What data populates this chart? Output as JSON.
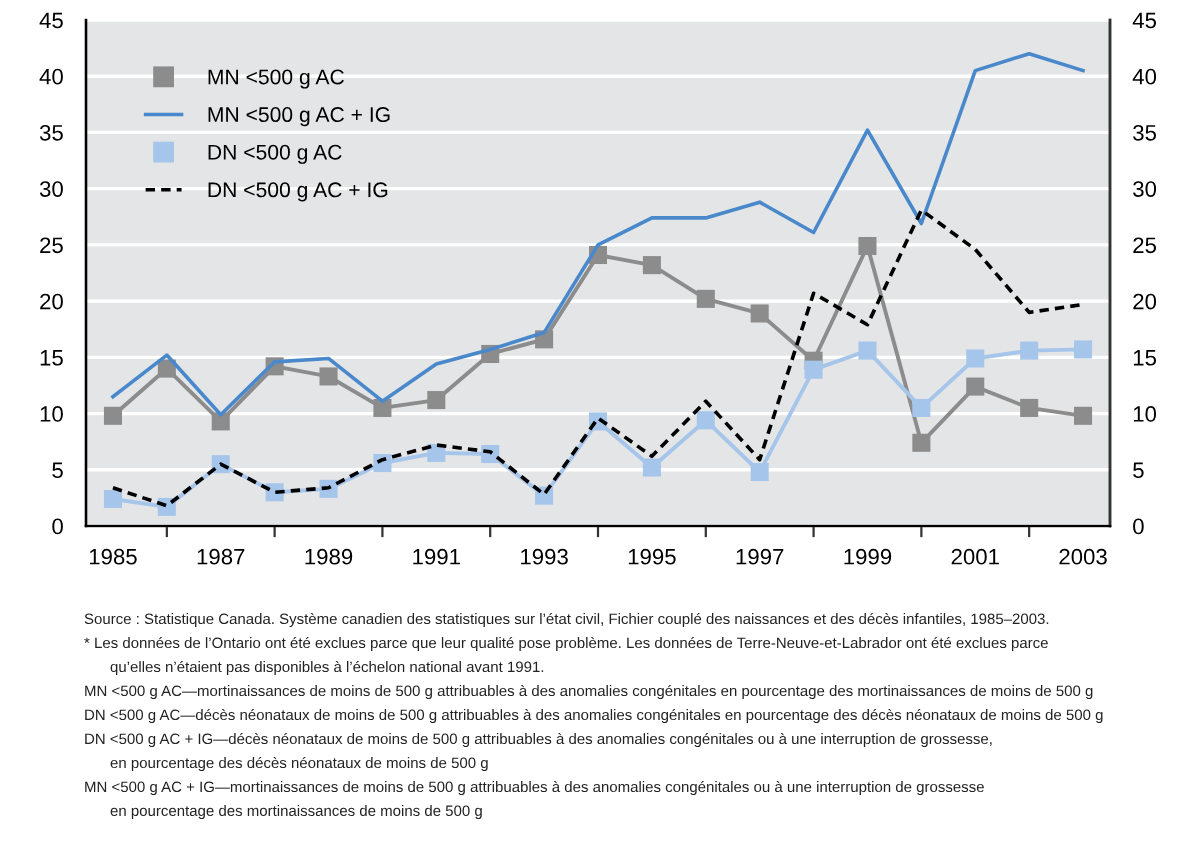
{
  "chart_data": {
    "type": "line",
    "x": [
      1985,
      1986,
      1987,
      1988,
      1989,
      1990,
      1991,
      1992,
      1993,
      1994,
      1995,
      1996,
      1997,
      1998,
      1999,
      2000,
      2001,
      2002,
      2003
    ],
    "series": [
      {
        "name": "MN <500 g AC",
        "color": "#8c8c8c",
        "marker": "square",
        "line_style": "solid",
        "values": [
          9.8,
          14.0,
          9.3,
          14.2,
          13.3,
          10.5,
          11.2,
          15.3,
          16.6,
          24.1,
          23.2,
          20.2,
          18.9,
          14.7,
          24.9,
          7.4,
          12.4,
          10.5,
          9.8
        ]
      },
      {
        "name": "MN <500 g AC + IG",
        "color": "#4a88cc",
        "marker": "none",
        "line_style": "solid",
        "values": [
          11.5,
          15.2,
          9.9,
          14.6,
          14.9,
          11.1,
          14.4,
          15.7,
          17.2,
          25.0,
          27.4,
          27.4,
          28.8,
          26.1,
          35.2,
          26.9,
          40.5,
          42.0,
          40.5
        ]
      },
      {
        "name": "DN <500 g AC",
        "color": "#a6c5ea",
        "marker": "square",
        "line_style": "solid",
        "values": [
          2.4,
          1.7,
          5.5,
          3.0,
          3.3,
          5.6,
          6.5,
          6.4,
          2.7,
          9.3,
          5.2,
          9.4,
          4.8,
          13.9,
          15.6,
          10.5,
          14.9,
          15.6,
          15.7
        ]
      },
      {
        "name": "DN <500 g AC + IG",
        "color": "#000000",
        "marker": "none",
        "line_style": "dashed",
        "values": [
          3.4,
          1.8,
          5.5,
          3.0,
          3.4,
          5.9,
          7.2,
          6.6,
          2.8,
          9.6,
          6.2,
          11.1,
          5.9,
          20.7,
          17.9,
          28.1,
          24.6,
          19.0,
          19.7
        ]
      }
    ],
    "xlim": [
      1984.5,
      2003.5
    ],
    "xticks": [
      1985,
      {
        "value": 1986,
        "label": null
      },
      1987,
      {
        "value": 1988,
        "label": null
      },
      1989,
      {
        "value": 1990,
        "label": null
      },
      1991,
      {
        "value": 1992,
        "label": null
      },
      1993,
      {
        "value": 1994,
        "label": null
      },
      1995,
      {
        "value": 1996,
        "label": null
      },
      1997,
      {
        "value": 1998,
        "label": null
      },
      1999,
      {
        "value": 2000,
        "label": null
      },
      2001,
      {
        "value": 2002,
        "label": null
      },
      2003
    ],
    "ylim": [
      0,
      45
    ],
    "yticks": [
      0,
      5,
      10,
      15,
      20,
      25,
      30,
      35,
      40,
      45
    ],
    "y2lim": [
      0,
      45
    ],
    "y2ticks": [
      0,
      5,
      10,
      15,
      20,
      25,
      30,
      35,
      40,
      45
    ],
    "grid": "y",
    "legend": "top left",
    "annotations": [
      "Source : Statistique Canada. Système canadien des statistiques sur l’état civil, Fichier couplé des naissances et des décès infantiles, 1985–2003.",
      "* Les données de l’Ontario ont été exclues parce que leur qualité pose problème. Les données de Terre-Neuve-et-Labrador ont été exclues parce\nqu’elles n’étaient pas disponibles à l’échelon national avant 1991.",
      "MN <500 g AC—mortinaissances de moins de 500 g attribuables à des anomalies congénitales en pourcentage des mortinaissances de moins de 500 g",
      "DN <500 g AC—décès néonataux de moins de 500 g attribuables à des anomalies congénitales en pourcentage des décès néonataux de moins de 500 g",
      "DN <500 g AC + IG—décès néonataux de moins de 500 g attribuables à des anomalies congénitales ou à une interruption de grossesse,\nen pourcentage des décès néonataux de moins de 500 g",
      "MN <500 g AC + IG—mortinaissances de moins de 500 g attribuables à des anomalies congénitales ou à une interruption de grossesse\nen pourcentage des mortinaissances de moins de 500 g"
    ]
  }
}
